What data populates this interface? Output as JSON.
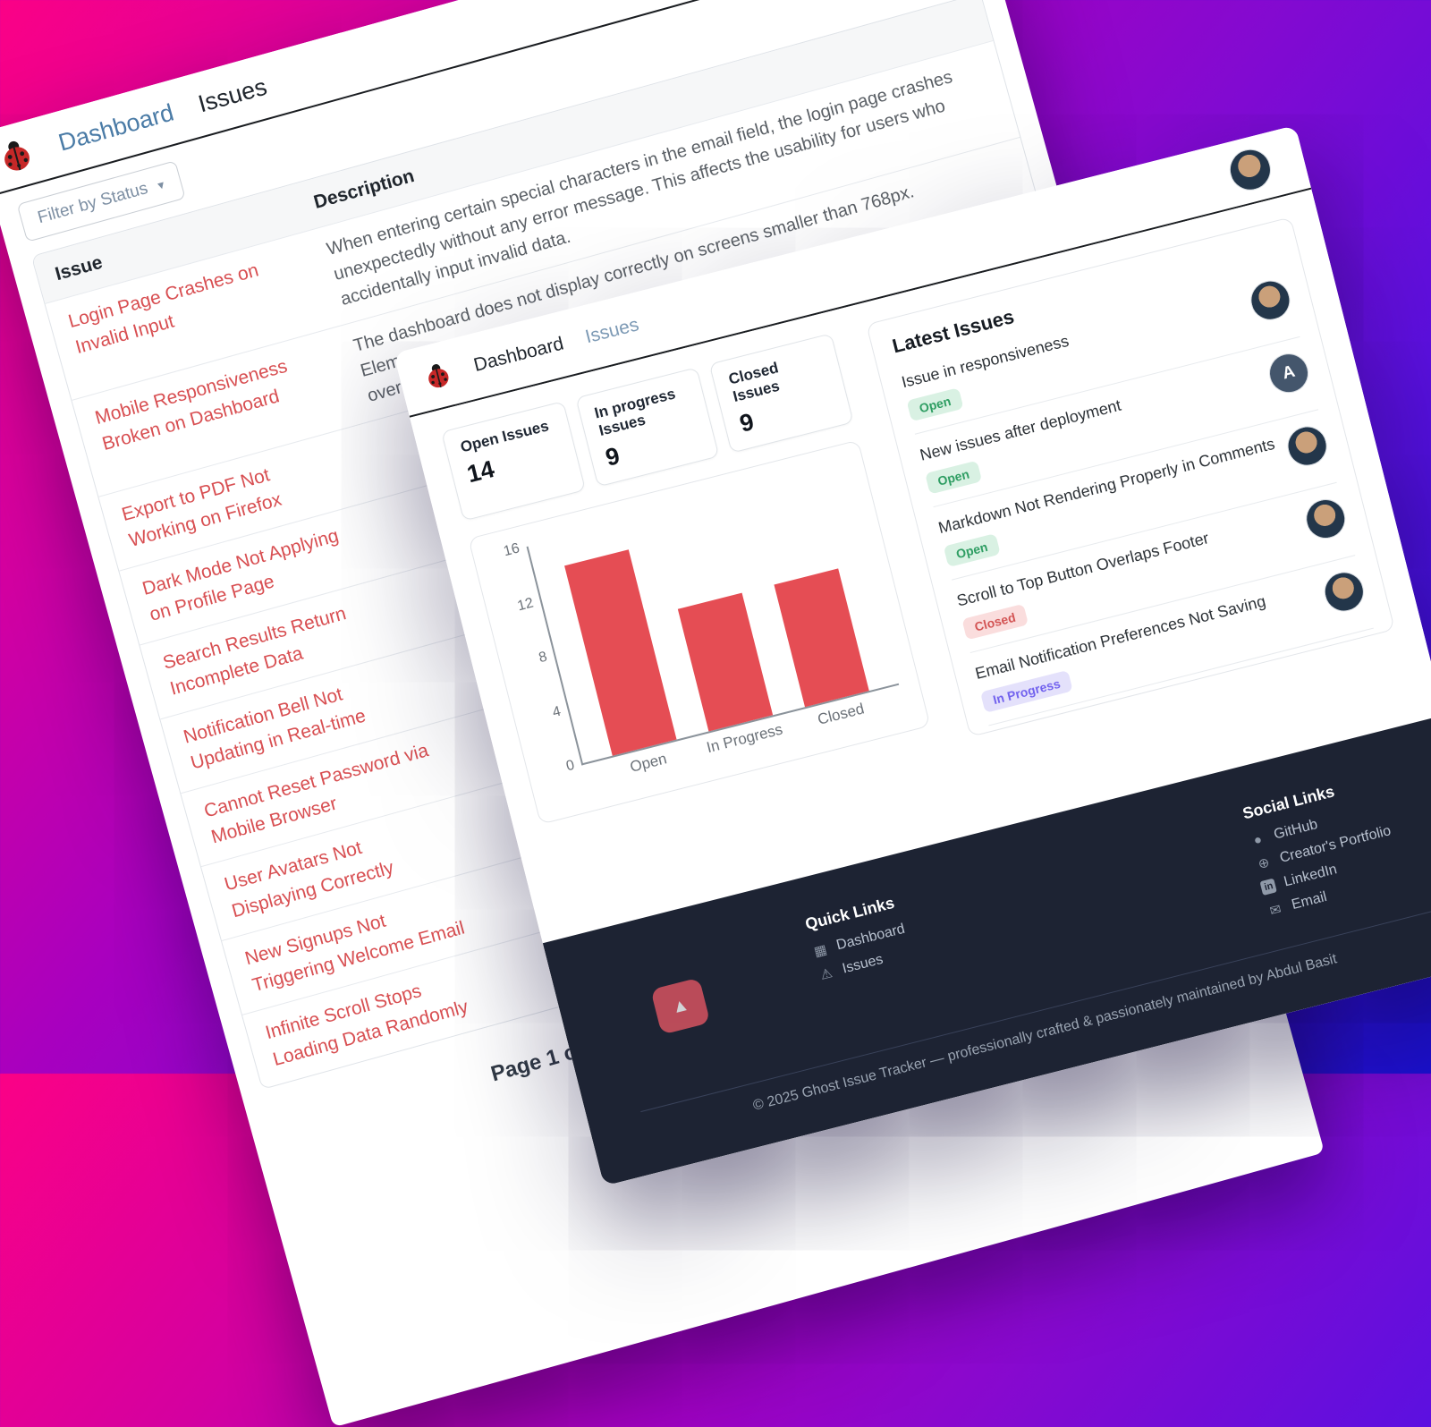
{
  "colors": {
    "bg_gradient": [
      "#fb0186",
      "#a800bf",
      "#5c10e0",
      "#1b11d4"
    ],
    "accent_red": "#e54d54",
    "issue_link_red": "#d84f52",
    "footer_bg": "#1d2333",
    "badge_open_bg": "#d9f1e3",
    "badge_open_text": "#2f9e63",
    "badge_closed_bg": "#fadddd",
    "badge_closed_text": "#d35454",
    "badge_progress_bg": "#e4e1fb",
    "badge_progress_text": "#7262ee"
  },
  "back_window": {
    "nav": {
      "dashboard": "Dashboard",
      "issues": "Issues"
    },
    "filter_label": "Filter by Status",
    "table": {
      "col_issue": "Issue",
      "col_description": "Description",
      "rows": [
        {
          "issue": "Login Page Crashes on\nInvalid Input",
          "description": "When entering certain special characters in the email field, the login page crashes\nunexpectedly without any error message. This affects the usability for users who\naccidentally input invalid data."
        },
        {
          "issue": "Mobile Responsiveness\nBroken on Dashboard",
          "description": "The dashboard does not display correctly on screens smaller than 768px. Elements\noverlap and some buttons are inaccessible, which causes issues for mobile users."
        },
        {
          "issue": "Export to PDF Not\nWorking on Firefox",
          "description": ""
        },
        {
          "issue": "Dark Mode Not Applying\non Profile Page",
          "description": ""
        },
        {
          "issue": "Search Results Return\nIncomplete Data",
          "description": ""
        },
        {
          "issue": "Notification Bell Not\nUpdating in Real-time",
          "description": ""
        },
        {
          "issue": "Cannot Reset Password via\nMobile Browser",
          "description": ""
        },
        {
          "issue": "User Avatars Not\nDisplaying Correctly",
          "description": ""
        },
        {
          "issue": "New Signups Not\nTriggering Welcome Email",
          "description": ""
        },
        {
          "issue": "Infinite Scroll Stops\nLoading Data Randomly",
          "description": ""
        }
      ]
    },
    "pagination": {
      "label": "Page 1 of 4",
      "buttons": [
        "«",
        "‹",
        "›",
        "»"
      ]
    }
  },
  "front_window": {
    "nav": {
      "dashboard": "Dashboard",
      "issues": "Issues"
    },
    "stats": [
      {
        "label": "Open Issues",
        "value": "14"
      },
      {
        "label": "In progress Issues",
        "value": "9"
      },
      {
        "label": "Closed Issues",
        "value": "9"
      }
    ],
    "latest": {
      "title": "Latest Issues",
      "items": [
        {
          "title": "Issue in responsiveness",
          "status": "Open",
          "status_key": "open",
          "avatar": "photo"
        },
        {
          "title": "New issues after deployment",
          "status": "Open",
          "status_key": "open",
          "avatar": "letter",
          "avatar_letter": "A"
        },
        {
          "title": "Markdown Not Rendering Properly in Comments",
          "status": "Open",
          "status_key": "open",
          "avatar": "photo"
        },
        {
          "title": "Scroll to Top Button Overlaps Footer",
          "status": "Closed",
          "status_key": "closed",
          "avatar": "photo"
        },
        {
          "title": "Email Notification Preferences Not Saving",
          "status": "In Progress",
          "status_key": "progress",
          "avatar": "photo"
        }
      ]
    },
    "footer": {
      "quick_title": "Quick Links",
      "quick_links": [
        {
          "label": "Dashboard",
          "icon": "grid"
        },
        {
          "label": "Issues",
          "icon": "warning"
        }
      ],
      "social_title": "Social Links",
      "social_links": [
        {
          "label": "GitHub",
          "icon": "github"
        },
        {
          "label": "Creator's Portfolio",
          "icon": "globe"
        },
        {
          "label": "LinkedIn",
          "icon": "linkedin"
        },
        {
          "label": "Email",
          "icon": "email"
        }
      ],
      "copyright": "© 2025 Ghost Issue Tracker — professionally crafted & passionately maintained by Abdul Basit",
      "scroll_top_glyph": "▲"
    }
  },
  "chart_data": {
    "type": "bar",
    "title": "",
    "categories": [
      "Open",
      "In Progress",
      "Closed"
    ],
    "values": [
      14,
      9,
      9
    ],
    "xlabel": "",
    "ylabel": "",
    "ylim": [
      0,
      16
    ],
    "yticks": [
      0,
      4,
      8,
      12,
      16
    ],
    "grid": false,
    "legend": "none",
    "bar_color": "#e54d54"
  }
}
